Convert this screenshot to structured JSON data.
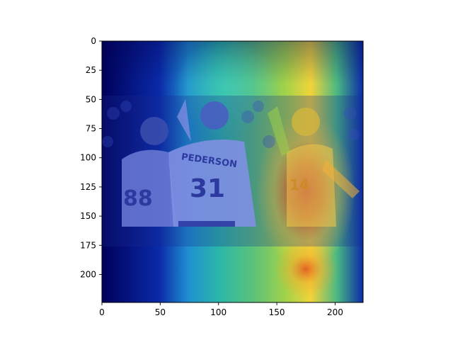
{
  "chart_data": {
    "type": "heatmap",
    "title": "",
    "xlabel": "",
    "ylabel": "",
    "xlim": [
      0,
      224
    ],
    "ylim": [
      224,
      0
    ],
    "xticks": [
      0,
      50,
      100,
      150,
      200
    ],
    "yticks": [
      0,
      25,
      50,
      75,
      100,
      125,
      150,
      175,
      200
    ],
    "grid": false,
    "colormap": "jet",
    "overlay": "saliency heatmap blended over a photo of baseball players",
    "hotspots": [
      {
        "x": 175,
        "y": 125,
        "intensity": 1.0
      },
      {
        "x": 175,
        "y": 200,
        "intensity": 0.75
      },
      {
        "x": 108,
        "y": 40,
        "intensity": 0.55
      }
    ],
    "photo_extent": {
      "x": [
        0,
        224
      ],
      "y": [
        48,
        176
      ]
    },
    "photo_text": {
      "player_left_number": "88",
      "player_left_name": "",
      "player_middle_name": "PEDERSON",
      "player_middle_number": "31",
      "player_right_number": "14"
    }
  }
}
